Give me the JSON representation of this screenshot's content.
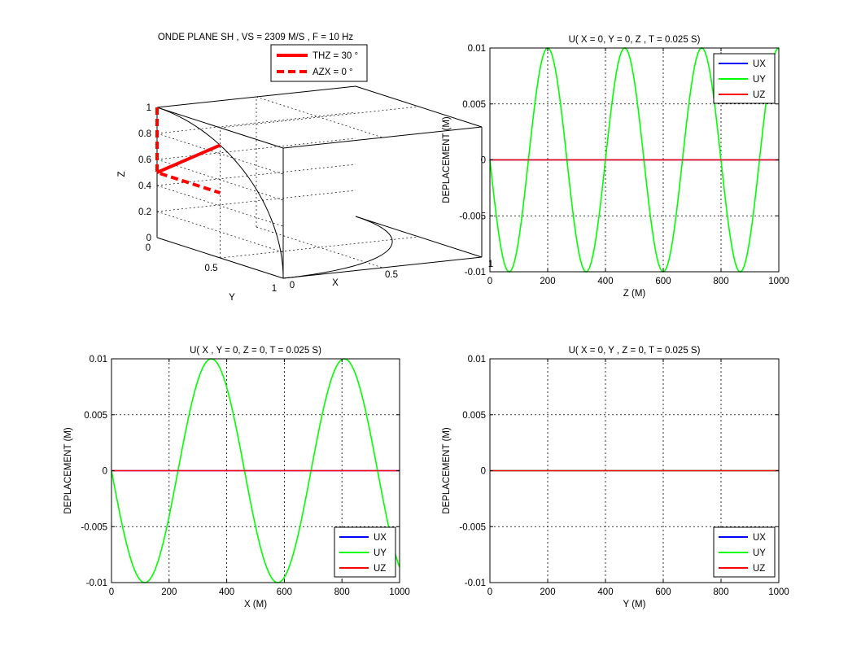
{
  "figure_background": "#ffffff",
  "colors": {
    "UX": "#0000ff",
    "UY": "#00ff00",
    "UZ": "#ff0000",
    "sphere": "#000000",
    "grid": "#000000"
  },
  "chart_data": [
    {
      "id": "panel-3d",
      "type": "line3d",
      "title": "ONDE PLANE SH , VS = 2309 M/S , F = 10 Hz",
      "xlabel": "X",
      "ylabel": "Y",
      "zlabel": "Z",
      "xlim": [
        0,
        1
      ],
      "ylim": [
        0,
        1
      ],
      "zlim": [
        0,
        1
      ],
      "xticks": [
        "0",
        "0.5",
        "1"
      ],
      "yticks": [
        "0",
        "0.5",
        "1"
      ],
      "zticks": [
        "0",
        "0.2",
        "0.4",
        "0.6",
        "0.8",
        "1"
      ],
      "grid": true,
      "legend_position": "top-right",
      "series": [
        {
          "name": "THZ = 30 °",
          "style": "solid",
          "color": "#ff0000",
          "points": [
            [
              0,
              0,
              0.5
            ],
            [
              0,
              0.5,
              0.866
            ]
          ]
        },
        {
          "name": "AZX = 0 °",
          "style": "dashed",
          "color": "#ff0000",
          "points": [
            [
              0,
              0,
              1
            ],
            [
              0,
              0,
              0.5
            ],
            [
              0,
              0.5,
              0.5
            ]
          ]
        }
      ],
      "annotations": [
        "unit sphere arcs in the y-z and x-y planes"
      ]
    },
    {
      "id": "panel-z",
      "type": "line",
      "title": "U( X = 0, Y = 0, Z , T = 0.025 S)",
      "xlabel": "Z (M)",
      "ylabel": "DEPLACEMENT (M)",
      "xlim": [
        0,
        1000
      ],
      "ylim": [
        -0.01,
        0.01
      ],
      "xticks": [
        0,
        200,
        400,
        600,
        800,
        1000
      ],
      "yticks": [
        -0.01,
        -0.005,
        0,
        0.005,
        0.01
      ],
      "ytick_labels": [
        "-0.01",
        "-0.005",
        "0",
        "0.005",
        "0.01"
      ],
      "grid": true,
      "legend_position": "top-right",
      "legend": [
        "UX",
        "UY",
        "UZ"
      ],
      "series": [
        {
          "name": "UX",
          "fn": "zero",
          "color": "#0000ff"
        },
        {
          "name": "UY",
          "fn": "neg_sin",
          "wavelength": 266.6,
          "amplitude": 0.01,
          "color": "#00ff00"
        },
        {
          "name": "UZ",
          "fn": "zero",
          "color": "#ff0000"
        }
      ]
    },
    {
      "id": "panel-x",
      "type": "line",
      "title": "U( X , Y = 0, Z = 0, T = 0.025 S)",
      "xlabel": "X (M)",
      "ylabel": "DEPLACEMENT (M)",
      "xlim": [
        0,
        1000
      ],
      "ylim": [
        -0.01,
        0.01
      ],
      "xticks": [
        0,
        200,
        400,
        600,
        800,
        1000
      ],
      "yticks": [
        -0.01,
        -0.005,
        0,
        0.005,
        0.01
      ],
      "ytick_labels": [
        "-0.01",
        "-0.005",
        "0",
        "0.005",
        "0.01"
      ],
      "grid": true,
      "legend_position": "bottom-right",
      "legend": [
        "UX",
        "UY",
        "UZ"
      ],
      "series": [
        {
          "name": "UX",
          "fn": "zero",
          "color": "#0000ff"
        },
        {
          "name": "UY",
          "fn": "neg_sin",
          "wavelength": 461.8,
          "amplitude": 0.01,
          "color": "#00ff00"
        },
        {
          "name": "UZ",
          "fn": "zero",
          "color": "#ff0000"
        }
      ]
    },
    {
      "id": "panel-y",
      "type": "line",
      "title": "U( X = 0, Y , Z = 0, T = 0.025 S)",
      "xlabel": "Y (M)",
      "ylabel": "DEPLACEMENT (M)",
      "xlim": [
        0,
        1000
      ],
      "ylim": [
        -0.01,
        0.01
      ],
      "xticks": [
        0,
        200,
        400,
        600,
        800,
        1000
      ],
      "yticks": [
        -0.01,
        -0.005,
        0,
        0.005,
        0.01
      ],
      "ytick_labels": [
        "-0.01",
        "-0.005",
        "0",
        "0.005",
        "0.01"
      ],
      "grid": true,
      "legend_position": "bottom-right",
      "legend": [
        "UX",
        "UY",
        "UZ"
      ],
      "series": [
        {
          "name": "UX",
          "fn": "zero",
          "color": "#0000ff"
        },
        {
          "name": "UY",
          "fn": "zero",
          "color": "#00ff00"
        },
        {
          "name": "UZ",
          "fn": "zero",
          "color": "#ff0000"
        }
      ]
    }
  ]
}
